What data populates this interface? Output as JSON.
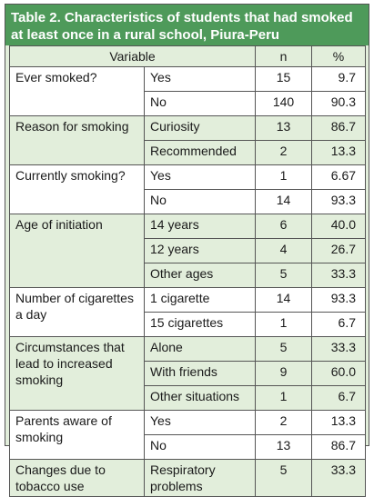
{
  "title": "Table 2. Characteristics of students that had smoked at least once in a rural school, Piura-Peru",
  "headers": {
    "variable": "Variable",
    "n": "n",
    "percent": "%"
  },
  "groups": [
    {
      "label": "Ever smoked?",
      "rows": [
        {
          "category": "Yes",
          "n": "15",
          "p": "9.7"
        },
        {
          "category": "No",
          "n": "140",
          "p": "90.3"
        }
      ]
    },
    {
      "label": "Reason for smoking",
      "rows": [
        {
          "category": "Curiosity",
          "n": "13",
          "p": "86.7"
        },
        {
          "category": "Recommended",
          "n": "2",
          "p": "13.3"
        }
      ]
    },
    {
      "label": "Currently smoking?",
      "rows": [
        {
          "category": "Yes",
          "n": "1",
          "p": "6.67"
        },
        {
          "category": "No",
          "n": "14",
          "p": "93.3"
        }
      ]
    },
    {
      "label": "Age of initiation",
      "rows": [
        {
          "category": "14 years",
          "n": "6",
          "p": "40.0"
        },
        {
          "category": "12 years",
          "n": "4",
          "p": "26.7"
        },
        {
          "category": "Other ages",
          "n": "5",
          "p": "33.3"
        }
      ]
    },
    {
      "label": "Number of cigarettes a day",
      "rows": [
        {
          "category": "1 cigarette",
          "n": "14",
          "p": "93.3"
        },
        {
          "category": "15 cigarettes",
          "n": "1",
          "p": "6.7"
        }
      ]
    },
    {
      "label": "Circumstances that lead to increased smoking",
      "rows": [
        {
          "category": "Alone",
          "n": "5",
          "p": "33.3"
        },
        {
          "category": "With friends",
          "n": "9",
          "p": "60.0"
        },
        {
          "category": "Other situations",
          "n": "1",
          "p": "6.7"
        }
      ]
    },
    {
      "label": "Parents aware of smoking",
      "rows": [
        {
          "category": "Yes",
          "n": "2",
          "p": "13.3"
        },
        {
          "category": "No",
          "n": "13",
          "p": "86.7"
        }
      ]
    },
    {
      "label": "Changes due to tobacco use",
      "rows": [
        {
          "category": "Respiratory problems",
          "n": "5",
          "p": "33.3"
        }
      ]
    }
  ]
}
